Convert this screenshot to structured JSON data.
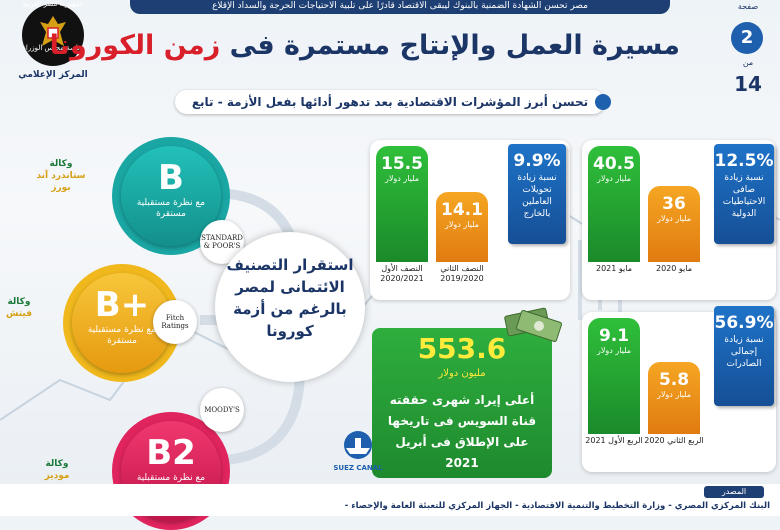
{
  "header": {
    "top_banner": "مصر تحسن الشهادة الضمنية بالبنوك ليبقى الاقتصاد قادرًا على تلبية الاحتياجات الحرجة والسداد الإقلاع",
    "title_main": "مسيرة العمل والإنتاج مستمرة فى ",
    "title_highlight": "زمن الكورونا",
    "subtitle": "تحسن أبرز المؤشرات الاقتصادية بعد تدهور أدائها بفعل الأزمة - تابع",
    "page_label": "صفحة",
    "page_number": "2",
    "page_of": "من",
    "page_total": "14"
  },
  "logo": {
    "top": "جمهورية مصر العربية",
    "name": "رئاسة مجلس الوزراء",
    "center": "المركز الإعلامي"
  },
  "ratings": [
    {
      "grade": "B",
      "outlook": "مع نظرة مستقبلية مستقرة",
      "agency_prefix": "وكالة",
      "agency": "ستاندرد آند بورز",
      "logo_text": "STANDARD & POOR'S"
    },
    {
      "grade": "B+",
      "outlook": "مع نظرة مستقبلية مستقرة",
      "agency_prefix": "وكالة",
      "agency": "فيتش",
      "logo_text": "Fitch Ratings"
    },
    {
      "grade": "B2",
      "outlook": "مع نظرة مستقبلية مستقرة",
      "agency_prefix": "وكالة",
      "agency": "موديز",
      "logo_text": "MOODY'S"
    }
  ],
  "center_text": "استقرار التصنيف الائتمانى لمصر بالرغم من أزمة كورونا",
  "panels": {
    "remittances": {
      "change": "9.9%",
      "change_desc": "نسبة زيادة تحويلات العاملين بالخارج",
      "bars": [
        {
          "value": "15.5",
          "unit": "مليار دولار",
          "label": "النصف الأول 2020/2021",
          "color": "green"
        },
        {
          "value": "14.1",
          "unit": "مليار دولار",
          "label": "النصف الثاني 2019/2020",
          "color": "orange"
        }
      ]
    },
    "reserves": {
      "change": "12.5%",
      "change_desc": "نسبة زيادة صافى الاحتياطيات الدولية",
      "bars": [
        {
          "value": "40.5",
          "unit": "مليار دولار",
          "label": "مايو 2021",
          "color": "green"
        },
        {
          "value": "36",
          "unit": "مليار دولار",
          "label": "مايو 2020",
          "color": "orange"
        }
      ]
    },
    "exports": {
      "change": "56.9%",
      "change_desc": "نسبة زيادة إجمالى الصادرات",
      "bars": [
        {
          "value": "9.1",
          "unit": "مليار دولار",
          "label": "الربع الأول 2021",
          "color": "green"
        },
        {
          "value": "5.8",
          "unit": "مليار دولار",
          "label": "الربع الثاني 2020",
          "color": "orange"
        }
      ]
    }
  },
  "suez": {
    "value": "553.6",
    "unit": "مليون دولار",
    "text": "أعلى إيراد شهرى حققته قناة السويس فى تاريخها على الإطلاق فى أبريل 2021",
    "logo_text": "SUEZ CANAL"
  },
  "footer": {
    "source_label": "المصدر",
    "source_text": "البنك المركزي المصري - وزارة التخطيط والتنمية الاقتصادية - الجهاز المركزي للتعبئة العامة والإحصاء -"
  },
  "colors": {
    "navy": "#1b3566",
    "green": "#1b8a2a",
    "orange": "#e07b10",
    "blue": "#1e5fae",
    "red": "#d81f2a"
  }
}
